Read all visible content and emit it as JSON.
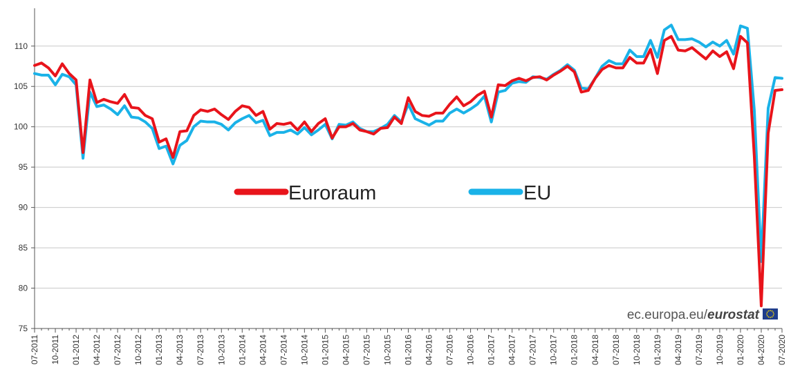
{
  "chart_data": {
    "type": "line",
    "ylim": [
      75,
      114
    ],
    "yticks": [
      75,
      80,
      85,
      90,
      95,
      100,
      105,
      110
    ],
    "x_tick_labels": [
      "07-2011",
      "10-2011",
      "01-2012",
      "04-2012",
      "07-2012",
      "10-2012",
      "01-2013",
      "04-2013",
      "07-2013",
      "10-2013",
      "01-2014",
      "04-2014",
      "07-2014",
      "10-2014",
      "01-2015",
      "04-2015",
      "07-2015",
      "10-2015",
      "01-2016",
      "04-2016",
      "07-2016",
      "10-2016",
      "01-2017",
      "04-2017",
      "07-2017",
      "10-2017",
      "01-2018",
      "04-2018",
      "07-2018",
      "10-2018",
      "01-2019",
      "04-2019",
      "07-2019",
      "10-2019",
      "01-2020",
      "04-2020",
      "07-2020"
    ],
    "grid": "horizontal",
    "legend_position": "middle",
    "series": [
      {
        "name": "Euroraum",
        "color": "#e8141b",
        "values": [
          107.6,
          107.9,
          107.3,
          106.3,
          107.8,
          106.6,
          105.8,
          96.8,
          105.8,
          103.0,
          103.4,
          103.1,
          102.9,
          104.0,
          102.4,
          102.3,
          101.4,
          101.0,
          98.1,
          98.5,
          96.2,
          99.4,
          99.5,
          101.4,
          102.1,
          101.9,
          102.2,
          101.5,
          100.9,
          101.9,
          102.6,
          102.4,
          101.4,
          101.9,
          99.7,
          100.4,
          100.3,
          100.5,
          99.6,
          100.6,
          99.4,
          100.4,
          101.0,
          98.6,
          100.0,
          100.0,
          100.4,
          99.6,
          99.4,
          99.1,
          99.8,
          99.9,
          101.2,
          100.4,
          103.6,
          101.9,
          101.4,
          101.3,
          101.7,
          101.7,
          102.8,
          103.7,
          102.6,
          103.1,
          103.9,
          104.4,
          101.2,
          105.2,
          105.1,
          105.7,
          106.0,
          105.7,
          106.1,
          106.2,
          105.8,
          106.4,
          106.9,
          107.5,
          106.8,
          104.3,
          104.5,
          106.0,
          107.1,
          107.6,
          107.3,
          107.3,
          108.6,
          107.9,
          107.9,
          109.6,
          106.6,
          110.7,
          111.2,
          109.5,
          109.4,
          109.8,
          109.1,
          108.4,
          109.4,
          108.7,
          109.3,
          107.2,
          111.2,
          110.4,
          96.3,
          77.8,
          99.2,
          104.5,
          104.6
        ]
      },
      {
        "name": "EU",
        "color": "#1ab2e8",
        "values": [
          106.6,
          106.4,
          106.4,
          105.2,
          106.5,
          106.2,
          105.2,
          96.1,
          104.3,
          102.5,
          102.7,
          102.2,
          101.5,
          102.6,
          101.2,
          101.1,
          100.6,
          99.8,
          97.3,
          97.6,
          95.4,
          97.7,
          98.3,
          100.0,
          100.7,
          100.6,
          100.6,
          100.3,
          99.6,
          100.5,
          101.0,
          101.4,
          100.5,
          100.8,
          98.9,
          99.3,
          99.3,
          99.6,
          99.1,
          99.9,
          99.0,
          99.6,
          100.3,
          98.5,
          100.3,
          100.2,
          100.6,
          99.8,
          99.4,
          99.4,
          99.8,
          100.3,
          101.4,
          100.6,
          102.8,
          101.0,
          100.6,
          100.2,
          100.7,
          100.7,
          101.7,
          102.2,
          101.7,
          102.2,
          102.8,
          103.8,
          100.6,
          104.3,
          104.5,
          105.4,
          105.6,
          105.5,
          106.2,
          106.1,
          105.9,
          106.5,
          107.0,
          107.7,
          107.0,
          104.8,
          104.7,
          106.0,
          107.5,
          108.2,
          107.8,
          107.8,
          109.5,
          108.7,
          108.7,
          110.7,
          108.6,
          112.0,
          112.6,
          110.8,
          110.8,
          110.9,
          110.5,
          109.9,
          110.5,
          110.0,
          110.7,
          109.0,
          112.5,
          112.2,
          102.0,
          83.3,
          102.3,
          106.1,
          106.0
        ]
      }
    ]
  },
  "source": {
    "prefix": "ec.europa.eu/",
    "brand": "eurostat",
    "flag_color": "#1f3d8c",
    "star_color": "#ffdd00"
  }
}
